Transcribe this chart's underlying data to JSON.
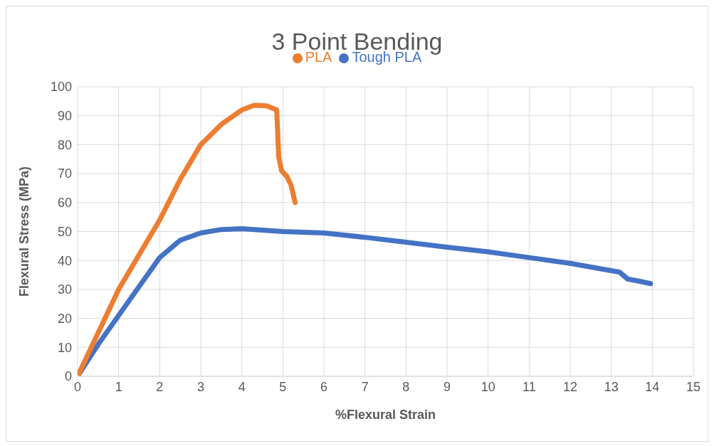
{
  "chart_data": {
    "type": "line",
    "title": "3 Point Bending",
    "xlabel": "%Flexural Strain",
    "ylabel": "Flexural Stress (MPa)",
    "xlim": [
      0,
      15
    ],
    "xticks": [
      0,
      1,
      2,
      3,
      4,
      5,
      6,
      7,
      8,
      9,
      10,
      11,
      12,
      13,
      14,
      15
    ],
    "ylim": [
      0,
      100
    ],
    "yticks": [
      0,
      10,
      20,
      30,
      40,
      50,
      60,
      70,
      80,
      90,
      100
    ],
    "grid": true,
    "legend": "top",
    "marker": "none",
    "line_style": "solid",
    "series": [
      {
        "name": "Tough PLA",
        "color": "#4472c4",
        "x": [
          0,
          0.5,
          1,
          1.5,
          2,
          2.5,
          3,
          3.5,
          4,
          5,
          6,
          7,
          8,
          9,
          10,
          11,
          12,
          13,
          13.2,
          13.4,
          13.7,
          13.96
        ],
        "values": [
          0,
          11,
          21,
          31,
          41,
          47,
          49.5,
          50.7,
          51,
          50,
          49.5,
          48,
          46.3,
          44.6,
          43,
          41,
          39,
          36.5,
          36,
          33.6,
          32.8,
          32
        ]
      },
      {
        "name": "PLA",
        "color": "#ed7d31",
        "x": [
          0,
          0.5,
          1,
          1.5,
          2,
          2.5,
          3,
          3.5,
          4,
          4.3,
          4.6,
          4.85,
          4.88,
          4.9,
          4.97,
          5.1,
          5.2,
          5.3
        ],
        "values": [
          0,
          15,
          30,
          42,
          54,
          68,
          80,
          87,
          92,
          93.6,
          93.4,
          92,
          82.5,
          75.7,
          71,
          69,
          66,
          60
        ]
      }
    ]
  }
}
